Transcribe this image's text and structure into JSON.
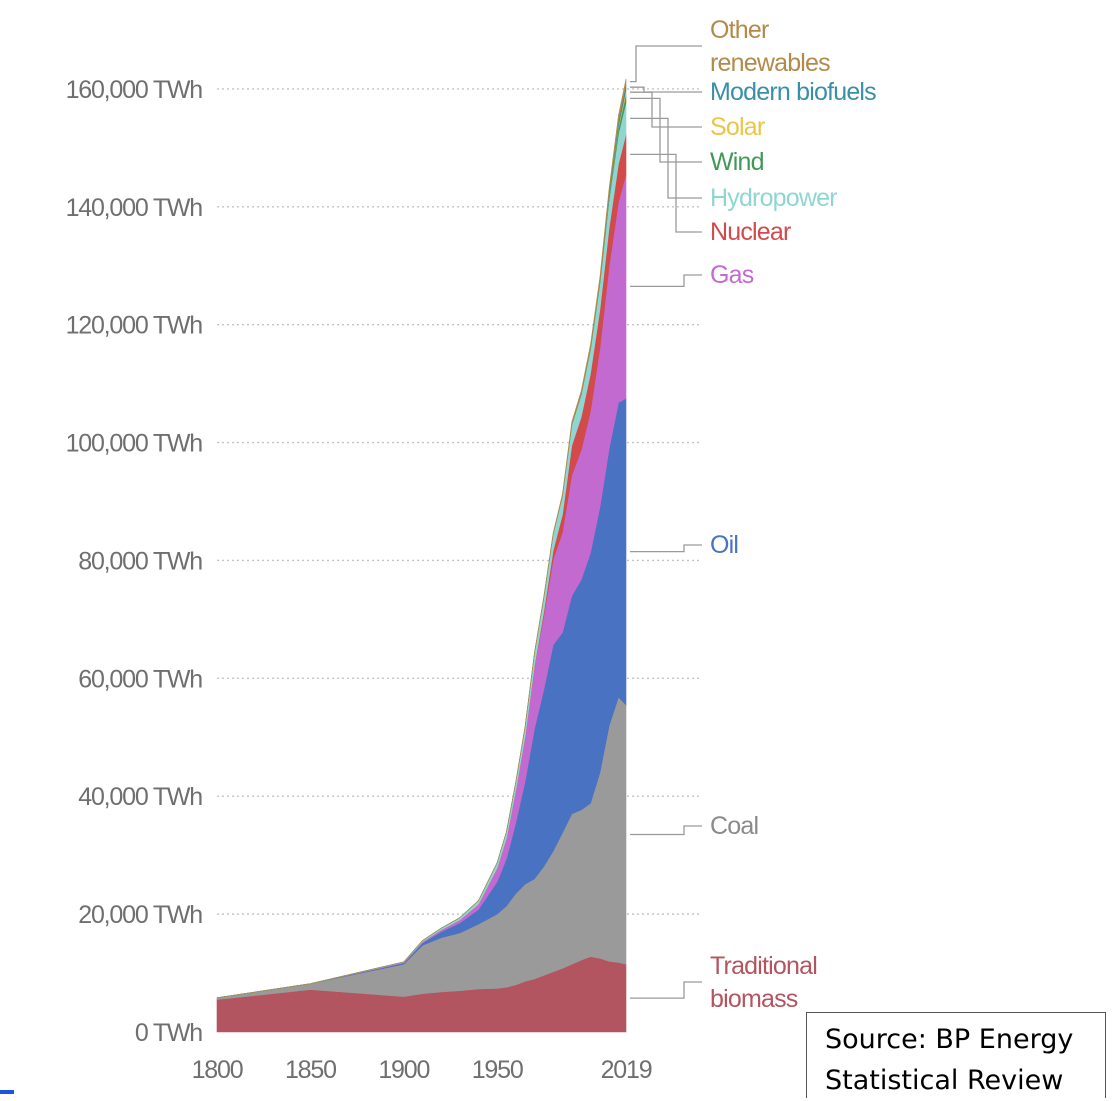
{
  "chart_data": {
    "type": "area",
    "title": "",
    "xlabel": "",
    "ylabel": "",
    "ylim": [
      0,
      170000
    ],
    "xlim": [
      1800,
      2019
    ],
    "x_ticks": [
      1800,
      1850,
      1900,
      1950,
      2019
    ],
    "x_tick_labels": [
      "1800",
      "1850",
      "1900",
      "1950",
      "2019"
    ],
    "y_ticks": [
      0,
      20000,
      40000,
      60000,
      80000,
      100000,
      120000,
      140000,
      160000
    ],
    "y_tick_labels": [
      "0 TWh",
      "20,000 TWh",
      "40,000 TWh",
      "60,000 TWh",
      "80,000 TWh",
      "100,000 TWh",
      "120,000 TWh",
      "140,000 TWh",
      "160,000 TWh"
    ],
    "grid": "horizontal dotted",
    "stacked": true,
    "x": [
      1800,
      1850,
      1900,
      1910,
      1920,
      1930,
      1940,
      1950,
      1955,
      1960,
      1965,
      1970,
      1975,
      1980,
      1985,
      1990,
      1995,
      2000,
      2005,
      2010,
      2015,
      2019
    ],
    "series": [
      {
        "name": "Traditional biomass",
        "color": "#b35560",
        "values": [
          5500,
          7200,
          6000,
          6500,
          6800,
          7000,
          7300,
          7400,
          7600,
          8000,
          8600,
          9000,
          9600,
          10200,
          10800,
          11500,
          12200,
          12800,
          12500,
          12000,
          11800,
          11500
        ]
      },
      {
        "name": "Coal",
        "color": "#9a9a9a",
        "values": [
          300,
          1000,
          5500,
          8200,
          9200,
          9800,
          11000,
          12600,
          13800,
          15500,
          16500,
          17000,
          18500,
          20500,
          23000,
          25500,
          25500,
          26000,
          31500,
          40000,
          45000,
          44000
        ]
      },
      {
        "name": "Oil",
        "color": "#4a72c2",
        "values": [
          0,
          0,
          200,
          400,
          1000,
          1700,
          2500,
          5500,
          8000,
          12000,
          17500,
          25500,
          30000,
          35000,
          34000,
          37000,
          39000,
          42500,
          45000,
          47000,
          50000,
          52000
        ]
      },
      {
        "name": "Gas",
        "color": "#c36ad1",
        "values": [
          0,
          0,
          100,
          200,
          300,
          500,
          900,
          2300,
          3500,
          5500,
          7500,
          10500,
          12500,
          14500,
          17000,
          20500,
          22000,
          24000,
          27000,
          31000,
          34000,
          38000
        ]
      },
      {
        "name": "Nuclear",
        "color": "#d24a4a",
        "values": [
          0,
          0,
          0,
          0,
          0,
          0,
          0,
          0,
          0,
          0,
          100,
          200,
          700,
          1500,
          3000,
          5000,
          5600,
          6400,
          6500,
          6500,
          6500,
          6800
        ]
      },
      {
        "name": "Hydropower",
        "color": "#8fd6d0",
        "values": [
          0,
          0,
          100,
          200,
          300,
          400,
          600,
          900,
          1100,
          1400,
          1700,
          2100,
          2400,
          2800,
          3200,
          3500,
          3800,
          4100,
          4400,
          4800,
          5100,
          5400
        ]
      },
      {
        "name": "Wind",
        "color": "#3e9a55",
        "values": [
          0,
          0,
          0,
          0,
          0,
          0,
          0,
          0,
          0,
          0,
          0,
          0,
          0,
          0,
          0,
          0,
          0,
          50,
          150,
          500,
          1000,
          1400
        ]
      },
      {
        "name": "Solar",
        "color": "#e9c646",
        "values": [
          0,
          0,
          0,
          0,
          0,
          0,
          0,
          0,
          0,
          0,
          0,
          0,
          0,
          0,
          0,
          0,
          0,
          0,
          10,
          60,
          350,
          700
        ]
      },
      {
        "name": "Modern biofuels",
        "color": "#3a8fa8",
        "values": [
          0,
          0,
          0,
          0,
          0,
          0,
          0,
          0,
          0,
          0,
          0,
          0,
          0,
          0,
          10,
          100,
          150,
          200,
          300,
          600,
          900,
          1000
        ]
      },
      {
        "name": "Other renewables",
        "color": "#b38a4a",
        "values": [
          0,
          0,
          0,
          0,
          0,
          0,
          0,
          0,
          0,
          0,
          50,
          100,
          150,
          200,
          300,
          400,
          500,
          600,
          700,
          800,
          900,
          900
        ]
      }
    ],
    "legend": {
      "placement": "right",
      "entries": [
        {
          "lines": [
            "Other",
            "renewables"
          ],
          "color": "#b38a4a"
        },
        {
          "lines": [
            "Modern biofuels"
          ],
          "color": "#3a8fa8"
        },
        {
          "lines": [
            "Solar"
          ],
          "color": "#e9c646"
        },
        {
          "lines": [
            "Wind"
          ],
          "color": "#3e9a55"
        },
        {
          "lines": [
            "Hydropower"
          ],
          "color": "#8fd6d0"
        },
        {
          "lines": [
            "Nuclear"
          ],
          "color": "#d24a4a"
        },
        {
          "lines": [
            "Gas"
          ],
          "color": "#c36ad1"
        },
        {
          "lines": [
            "Oil"
          ],
          "color": "#4a72c2"
        },
        {
          "lines": [
            "Coal"
          ],
          "color": "#8a8a8a"
        },
        {
          "lines": [
            "Traditional",
            "biomass"
          ],
          "color": "#b35560"
        }
      ]
    }
  },
  "source_note": {
    "line1": "Source: BP Energy",
    "line2": "Statistical Review"
  }
}
